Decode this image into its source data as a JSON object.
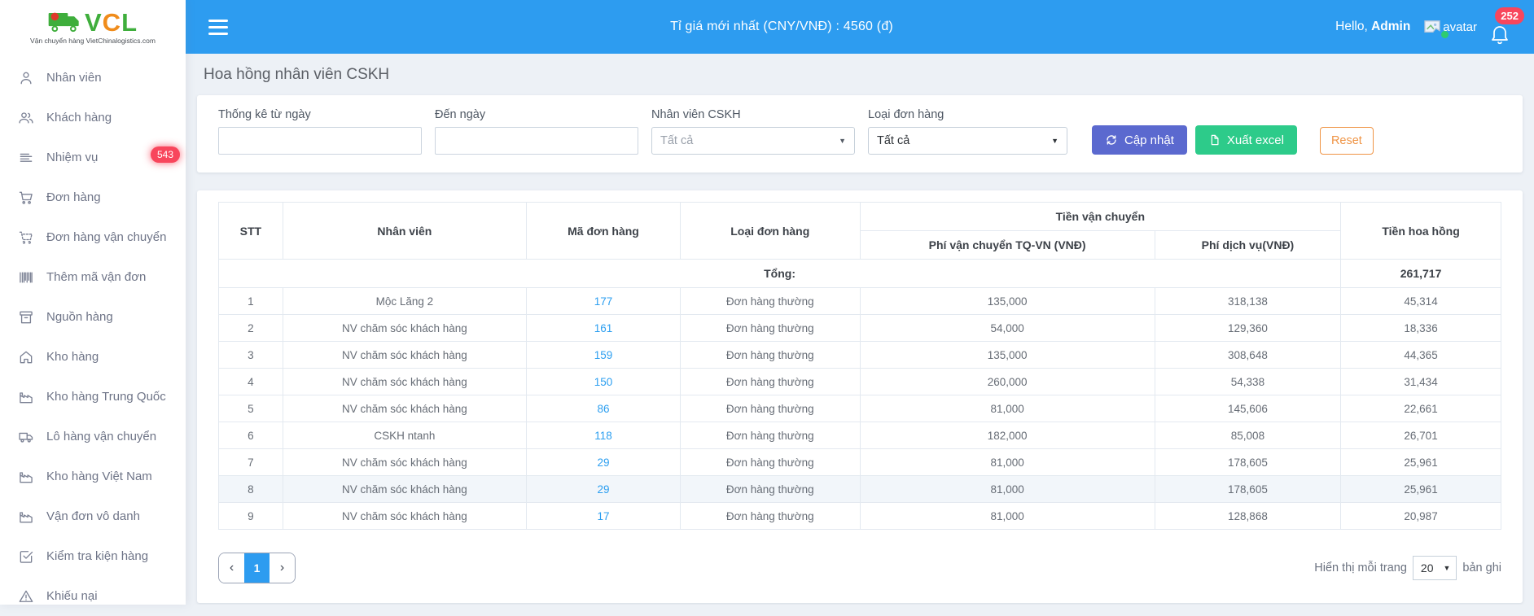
{
  "brand": {
    "logo": "VCL",
    "logo_letters": [
      "V",
      "C",
      "L"
    ],
    "tagline": "Vận chuyển hàng VietChinalogistics.com"
  },
  "topbar": {
    "rate_text": "Tỉ giá mới nhất (CNY/VNĐ) : 4560 (đ)",
    "greeting": "Hello,",
    "username": "Admin",
    "avatar_alt": "avatar",
    "notification_count": "252"
  },
  "sidebar": {
    "items": [
      {
        "name": "nhan-vien",
        "icon": "user",
        "label": "Nhân viên"
      },
      {
        "name": "khach-hang",
        "icon": "users",
        "label": "Khách hàng"
      },
      {
        "name": "nhiem-vu",
        "icon": "tasks",
        "label": "Nhiệm vụ",
        "badge": "543"
      },
      {
        "name": "don-hang",
        "icon": "cart",
        "label": "Đơn hàng"
      },
      {
        "name": "don-hang-van-chuyen",
        "icon": "cart-dashed",
        "label": "Đơn hàng vận chuyển"
      },
      {
        "name": "them-ma-van-don",
        "icon": "barcode",
        "label": "Thêm mã vận đơn"
      },
      {
        "name": "nguon-hang",
        "icon": "archive",
        "label": "Nguồn hàng"
      },
      {
        "name": "kho-hang",
        "icon": "home",
        "label": "Kho hàng"
      },
      {
        "name": "kho-hang-trung-quoc",
        "icon": "factory",
        "label": "Kho hàng Trung Quốc"
      },
      {
        "name": "lo-hang-van-chuyen",
        "icon": "truck",
        "label": "Lô hàng vận chuyển"
      },
      {
        "name": "kho-hang-viet-nam",
        "icon": "factory",
        "label": "Kho hàng Việt Nam"
      },
      {
        "name": "van-don-vo-danh",
        "icon": "factory",
        "label": "Vận đơn vô danh"
      },
      {
        "name": "kiem-tra-kien-hang",
        "icon": "check-square",
        "label": "Kiểm tra kiện hàng"
      },
      {
        "name": "khieu-nai",
        "icon": "alert-triangle",
        "label": "Khiếu nại"
      }
    ]
  },
  "page": {
    "title": "Hoa hồng nhân viên CSKH"
  },
  "filters": {
    "from_date": {
      "label": "Thống kê từ ngày",
      "value": ""
    },
    "to_date": {
      "label": "Đến ngày",
      "value": ""
    },
    "staff": {
      "label": "Nhân viên CSKH",
      "value": "Tất cả"
    },
    "order_type": {
      "label": "Loại đơn hàng",
      "value": "Tất cả"
    },
    "update_button": "Cập nhật",
    "export_button": "Xuất excel",
    "reset_button": "Reset"
  },
  "table": {
    "headers": {
      "stt": "STT",
      "staff": "Nhân viên",
      "order_id": "Mã đơn hàng",
      "order_type": "Loại đơn hàng",
      "shipping_group": "Tiền vận chuyển",
      "shipping_fee": "Phí vận chuyển TQ-VN (VNĐ)",
      "service_fee": "Phí dịch vụ(VNĐ)",
      "commission": "Tiền hoa hồng"
    },
    "total_label": "Tổng:",
    "total_value": "261,717",
    "rows": [
      {
        "stt": "1",
        "staff": "Mộc Lăng 2",
        "order_id": "177",
        "order_type": "Đơn hàng thường",
        "shipping_fee": "135,000",
        "service_fee": "318,138",
        "commission": "45,314"
      },
      {
        "stt": "2",
        "staff": "NV chăm sóc khách hàng",
        "order_id": "161",
        "order_type": "Đơn hàng thường",
        "shipping_fee": "54,000",
        "service_fee": "129,360",
        "commission": "18,336"
      },
      {
        "stt": "3",
        "staff": "NV chăm sóc khách hàng",
        "order_id": "159",
        "order_type": "Đơn hàng thường",
        "shipping_fee": "135,000",
        "service_fee": "308,648",
        "commission": "44,365"
      },
      {
        "stt": "4",
        "staff": "NV chăm sóc khách hàng",
        "order_id": "150",
        "order_type": "Đơn hàng thường",
        "shipping_fee": "260,000",
        "service_fee": "54,338",
        "commission": "31,434"
      },
      {
        "stt": "5",
        "staff": "NV chăm sóc khách hàng",
        "order_id": "86",
        "order_type": "Đơn hàng thường",
        "shipping_fee": "81,000",
        "service_fee": "145,606",
        "commission": "22,661"
      },
      {
        "stt": "6",
        "staff": "CSKH ntanh",
        "order_id": "118",
        "order_type": "Đơn hàng thường",
        "shipping_fee": "182,000",
        "service_fee": "85,008",
        "commission": "26,701"
      },
      {
        "stt": "7",
        "staff": "NV chăm sóc khách hàng",
        "order_id": "29",
        "order_type": "Đơn hàng thường",
        "shipping_fee": "81,000",
        "service_fee": "178,605",
        "commission": "25,961"
      },
      {
        "stt": "8",
        "staff": "NV chăm sóc khách hàng",
        "order_id": "29",
        "order_type": "Đơn hàng thường",
        "shipping_fee": "81,000",
        "service_fee": "178,605",
        "commission": "25,961",
        "highlighted": true
      },
      {
        "stt": "9",
        "staff": "NV chăm sóc khách hàng",
        "order_id": "17",
        "order_type": "Đơn hàng thường",
        "shipping_fee": "81,000",
        "service_fee": "128,868",
        "commission": "20,987"
      }
    ]
  },
  "pagination": {
    "prev_icon": "‹",
    "active_page": "1",
    "next_icon": "›"
  },
  "page_size": {
    "label_prefix": "Hiển thị mỗi trang",
    "value": "20",
    "label_suffix": "bản ghi"
  },
  "colors": {
    "topbar_blue": "#2d9cf0",
    "primary_button": "#5b69cf",
    "success_button": "#2dcb8a",
    "reset_orange": "#ef9445",
    "badge_red": "#f8465c",
    "link_blue": "#2d9ff0"
  }
}
